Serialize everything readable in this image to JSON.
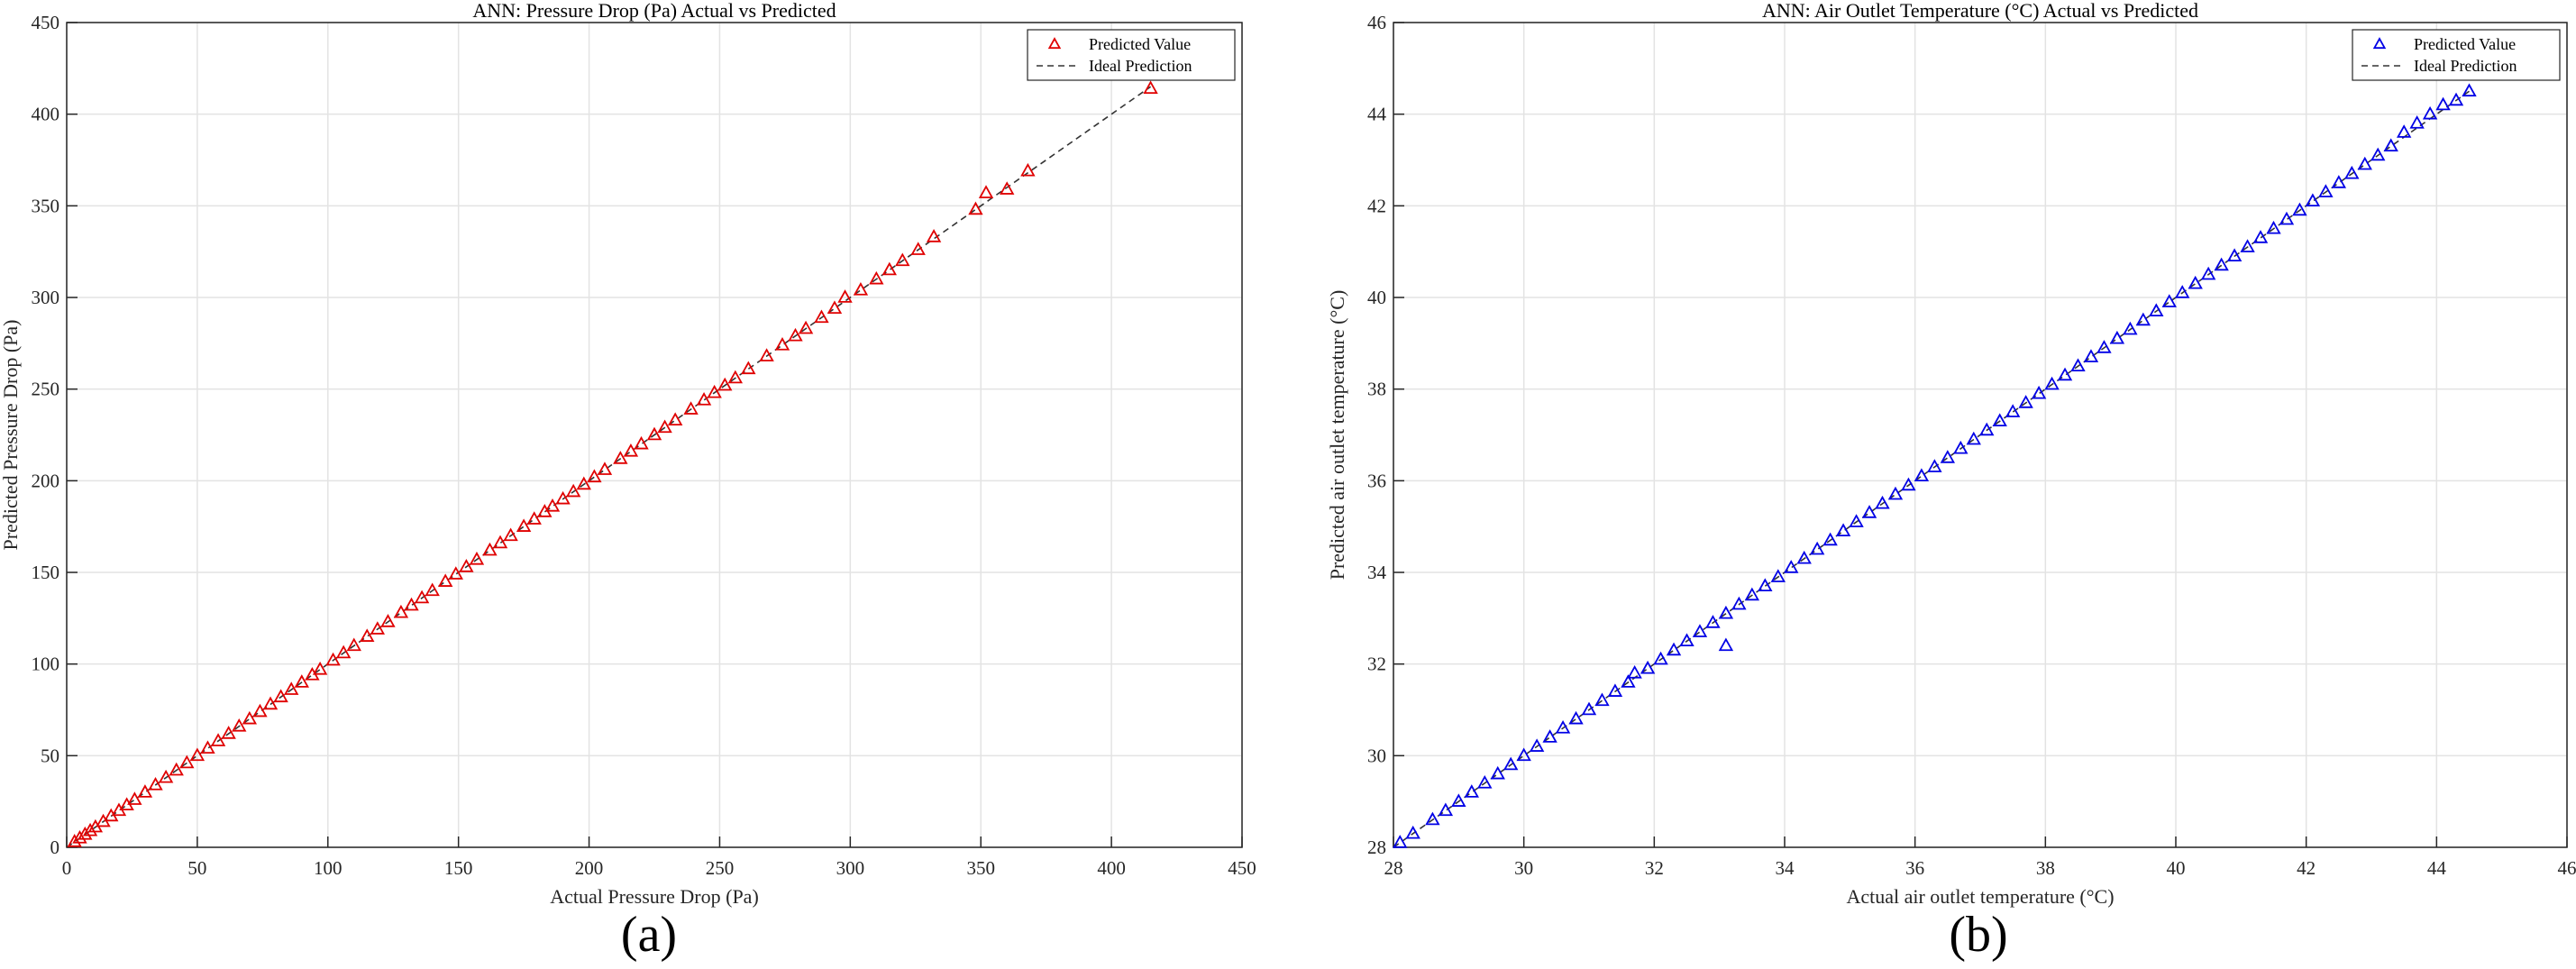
{
  "chart_data": [
    {
      "type": "scatter",
      "title": "ANN: Pressure Drop (Pa) Actual vs Predicted",
      "xlabel": "Actual Pressure Drop (Pa)",
      "ylabel": "Predicted Pressure Drop (Pa)",
      "xlim": [
        0,
        450
      ],
      "ylim": [
        0,
        450
      ],
      "xticks": [
        "0",
        "50",
        "100",
        "150",
        "200",
        "250",
        "300",
        "350",
        "400",
        "450"
      ],
      "yticks": [
        "0",
        "50",
        "100",
        "150",
        "200",
        "250",
        "300",
        "350",
        "400",
        "450"
      ],
      "grid": true,
      "legend_position": "top-right",
      "series": [
        {
          "name": "Predicted Value",
          "marker": "triangle",
          "color": "#e00000",
          "x": [
            3,
            5,
            7,
            9,
            11,
            14,
            17,
            20,
            23,
            26,
            30,
            34,
            38,
            42,
            46,
            50,
            54,
            58,
            62,
            66,
            70,
            74,
            78,
            82,
            86,
            90,
            94,
            97,
            102,
            106,
            110,
            115,
            119,
            123,
            128,
            132,
            136,
            140,
            145,
            149,
            153,
            157,
            162,
            166,
            170,
            175,
            179,
            183,
            186,
            190,
            194,
            198,
            202,
            206,
            212,
            216,
            220,
            225,
            229,
            233,
            239,
            244,
            248,
            252,
            256,
            261,
            268,
            274,
            279,
            283,
            289,
            294,
            298,
            304,
            310,
            315,
            320,
            326,
            332,
            348,
            352,
            360,
            368,
            415
          ],
          "y": [
            3,
            5,
            7,
            9,
            11,
            14,
            17,
            20,
            23,
            26,
            30,
            34,
            38,
            42,
            46,
            50,
            54,
            58,
            62,
            66,
            70,
            74,
            78,
            82,
            86,
            90,
            94,
            97,
            102,
            106,
            110,
            115,
            119,
            123,
            128,
            132,
            136,
            140,
            145,
            149,
            153,
            157,
            162,
            166,
            170,
            175,
            179,
            183,
            186,
            190,
            194,
            198,
            202,
            206,
            212,
            216,
            220,
            225,
            229,
            233,
            239,
            244,
            248,
            252,
            256,
            261,
            268,
            274,
            279,
            283,
            289,
            294,
            300,
            304,
            310,
            315,
            320,
            326,
            333,
            348,
            357,
            359,
            369,
            414
          ]
        },
        {
          "name": "Ideal Prediction",
          "style": "dashed",
          "color": "#333333",
          "x": [
            0,
            415
          ],
          "y": [
            0,
            415
          ]
        }
      ],
      "panel_label": "(a)"
    },
    {
      "type": "scatter",
      "title": "ANN: Air Outlet Temperature (°C) Actual vs Predicted",
      "xlabel": "Actual air outlet temperature (°C)",
      "ylabel": "Predicted air outlet temperature (°C)",
      "xlim": [
        28,
        46
      ],
      "ylim": [
        28,
        46
      ],
      "xticks": [
        "28",
        "30",
        "32",
        "34",
        "36",
        "38",
        "40",
        "42",
        "44",
        "46"
      ],
      "yticks": [
        "28",
        "30",
        "32",
        "34",
        "36",
        "38",
        "40",
        "42",
        "44",
        "46"
      ],
      "grid": true,
      "legend_position": "top-right",
      "series": [
        {
          "name": "Predicted Value",
          "marker": "triangle",
          "color": "#0000e6",
          "x": [
            28.1,
            28.3,
            28.6,
            28.8,
            29.0,
            29.2,
            29.4,
            29.6,
            29.8,
            30.0,
            30.2,
            30.4,
            30.6,
            30.8,
            31.0,
            31.2,
            31.4,
            31.6,
            31.7,
            31.9,
            32.1,
            32.3,
            32.5,
            32.7,
            32.9,
            33.1,
            33.3,
            33.5,
            33.7,
            33.9,
            34.1,
            34.3,
            34.5,
            34.7,
            34.9,
            35.1,
            35.3,
            35.5,
            35.7,
            35.9,
            36.1,
            36.3,
            36.5,
            36.7,
            36.9,
            37.1,
            37.3,
            37.5,
            37.7,
            37.9,
            38.1,
            38.3,
            38.5,
            38.7,
            38.9,
            39.1,
            39.3,
            39.5,
            39.7,
            39.9,
            40.1,
            40.3,
            40.5,
            40.7,
            40.9,
            41.1,
            41.3,
            41.5,
            41.7,
            41.9,
            42.1,
            42.3,
            42.5,
            42.7,
            42.9,
            43.1,
            43.3,
            43.5,
            43.7,
            43.9,
            44.1,
            44.3,
            44.5,
            33.1
          ],
          "y": [
            28.1,
            28.3,
            28.6,
            28.8,
            29.0,
            29.2,
            29.4,
            29.6,
            29.8,
            30.0,
            30.2,
            30.4,
            30.6,
            30.8,
            31.0,
            31.2,
            31.4,
            31.6,
            31.8,
            31.9,
            32.1,
            32.3,
            32.5,
            32.7,
            32.9,
            33.1,
            33.3,
            33.5,
            33.7,
            33.9,
            34.1,
            34.3,
            34.5,
            34.7,
            34.9,
            35.1,
            35.3,
            35.5,
            35.7,
            35.9,
            36.1,
            36.3,
            36.5,
            36.7,
            36.9,
            37.1,
            37.3,
            37.5,
            37.7,
            37.9,
            38.1,
            38.3,
            38.5,
            38.7,
            38.9,
            39.1,
            39.3,
            39.5,
            39.7,
            39.9,
            40.1,
            40.3,
            40.5,
            40.7,
            40.9,
            41.1,
            41.3,
            41.5,
            41.7,
            41.9,
            42.1,
            42.3,
            42.5,
            42.7,
            42.9,
            43.1,
            43.3,
            43.6,
            43.8,
            44.0,
            44.2,
            44.3,
            44.5,
            32.4
          ]
        },
        {
          "name": "Ideal Prediction",
          "style": "dashed",
          "color": "#333333",
          "x": [
            28,
            44.5
          ],
          "y": [
            28,
            44.5
          ]
        }
      ],
      "panel_label": "(b)"
    }
  ]
}
